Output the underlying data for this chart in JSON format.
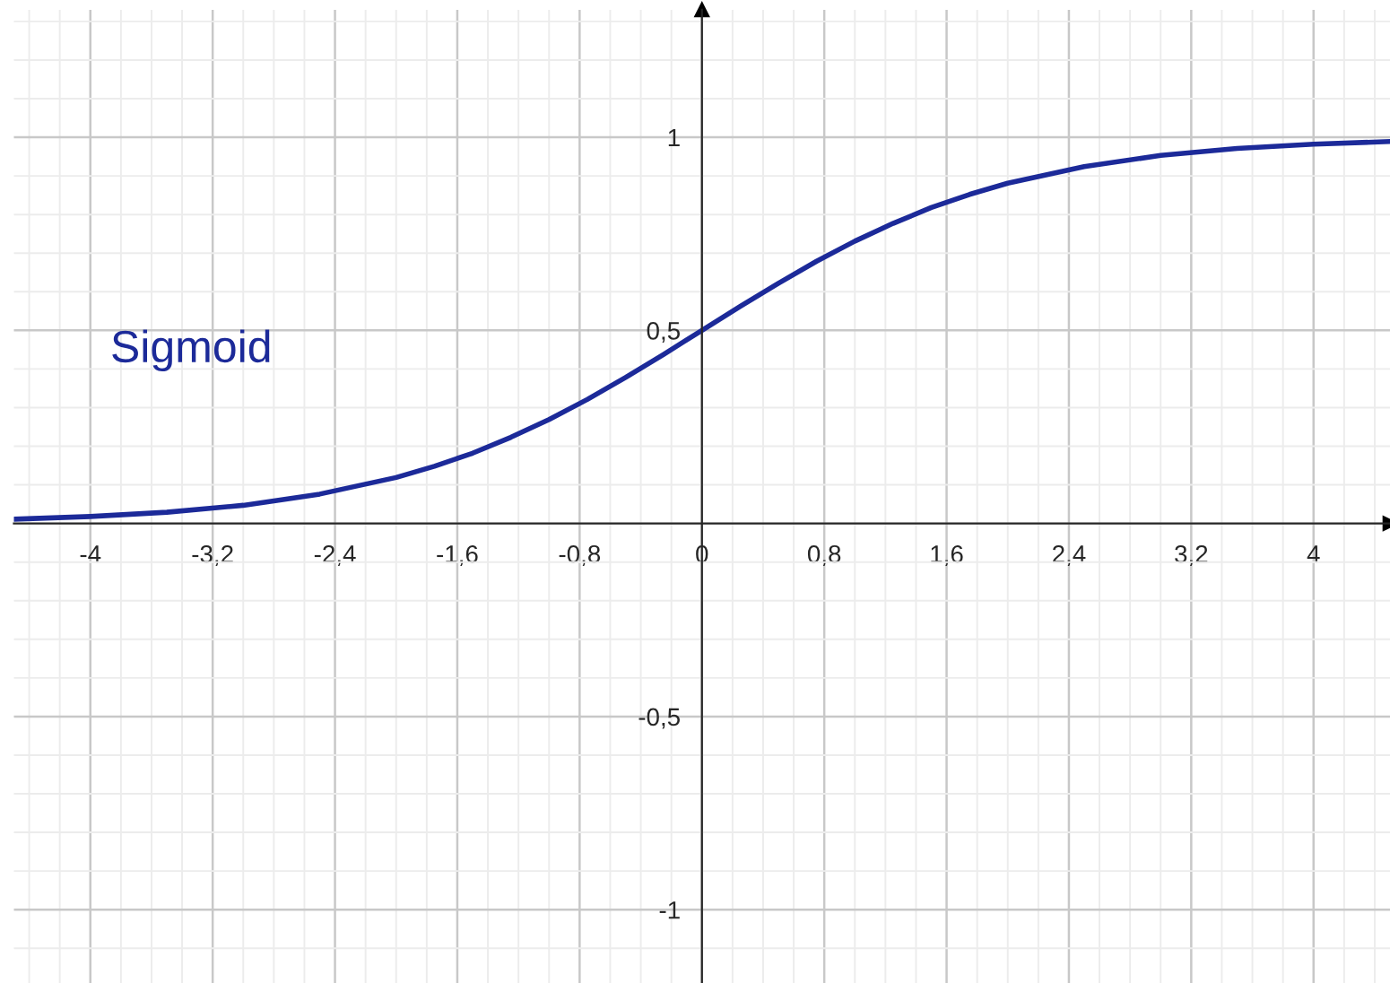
{
  "chart_data": {
    "type": "line",
    "x": [
      -4.5,
      -4,
      -3.5,
      -3,
      -2.5,
      -2,
      -1.75,
      -1.5,
      -1.25,
      -1,
      -0.75,
      -0.5,
      -0.25,
      0,
      0.25,
      0.5,
      0.75,
      1,
      1.25,
      1.5,
      1.75,
      2,
      2.5,
      3,
      3.5,
      4,
      4.5
    ],
    "series": [
      {
        "color": "#1c2a99",
        "values": [
          0.011,
          0.018,
          0.029,
          0.047,
          0.076,
          0.119,
          0.148,
          0.182,
          0.223,
          0.269,
          0.321,
          0.378,
          0.438,
          0.5,
          0.562,
          0.622,
          0.679,
          0.731,
          0.777,
          0.818,
          0.852,
          0.881,
          0.924,
          0.953,
          0.971,
          0.982,
          0.989
        ]
      }
    ],
    "annotations": [
      "Sigmoid"
    ],
    "xlim": [
      -4.5,
      4.5
    ],
    "ylim": [
      -1.19,
      1.33
    ],
    "xticks": [
      {
        "value": -4,
        "label": "-4"
      },
      {
        "value": -3.2,
        "label": "-3,2"
      },
      {
        "value": -2.4,
        "label": "-2,4"
      },
      {
        "value": -1.6,
        "label": "-1,6"
      },
      {
        "value": -0.8,
        "label": "-0,8"
      },
      {
        "value": 0,
        "label": "0"
      },
      {
        "value": 0.8,
        "label": "0,8"
      },
      {
        "value": 1.6,
        "label": "1,6"
      },
      {
        "value": 2.4,
        "label": "2,4"
      },
      {
        "value": 3.2,
        "label": "3,2"
      },
      {
        "value": 4,
        "label": "4"
      }
    ],
    "yticks": [
      {
        "value": -1,
        "label": "-1"
      },
      {
        "value": -0.5,
        "label": "-0,5"
      },
      {
        "value": 0.5,
        "label": "0,5"
      },
      {
        "value": 1,
        "label": "1"
      }
    ],
    "grid": true,
    "marker": "none",
    "line_style": "solid"
  }
}
